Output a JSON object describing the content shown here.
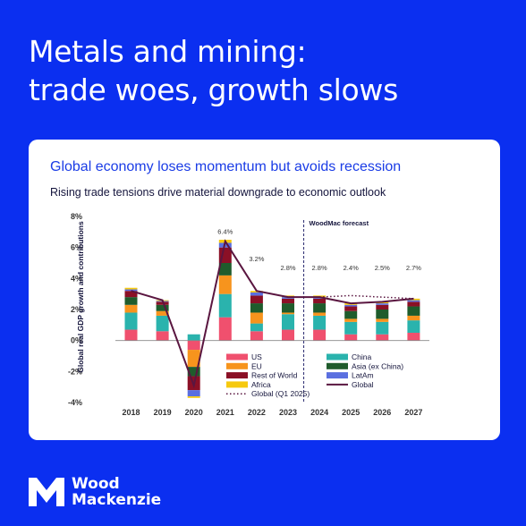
{
  "headline": {
    "line1": "Metals and mining:",
    "line2": "trade woes, growth slows"
  },
  "card": {
    "title": "Global economy loses momentum but avoids recession",
    "subtitle": "Rising trade tensions drive material downgrade to economic outlook"
  },
  "brand": {
    "line1": "Wood",
    "line2": "Mackenzie"
  },
  "colors": {
    "background": "#0b2ff0",
    "title": "#1a3ce6",
    "US": "#f0506e",
    "China": "#2ab3ad",
    "EU": "#f7941d",
    "Asia (ex China)": "#1f5c2c",
    "Rest of World": "#8b1026",
    "LatAm": "#5a6fe0",
    "Africa": "#f6c90e",
    "Global": "#5a1640"
  },
  "chart_data": {
    "type": "bar",
    "stacked": true,
    "ylabel": "Global real GDP growth and contributions",
    "ylim": [
      -4,
      8
    ],
    "yticks": [
      "8%",
      "6%",
      "4%",
      "2%",
      "0%",
      "-2%",
      "-4%"
    ],
    "ytick_values": [
      8,
      6,
      4,
      2,
      0,
      -2,
      -4
    ],
    "categories": [
      "2018",
      "2019",
      "2020",
      "2021",
      "2022",
      "2023",
      "2024",
      "2025",
      "2026",
      "2027"
    ],
    "series": [
      {
        "name": "US",
        "values": [
          0.7,
          0.6,
          -0.6,
          1.5,
          0.6,
          0.7,
          0.7,
          0.4,
          0.4,
          0.5
        ]
      },
      {
        "name": "China",
        "values": [
          1.1,
          1.0,
          0.4,
          1.5,
          0.5,
          1.0,
          0.9,
          0.8,
          0.8,
          0.8
        ]
      },
      {
        "name": "EU",
        "values": [
          0.5,
          0.3,
          -1.1,
          1.2,
          0.7,
          0.1,
          0.2,
          0.2,
          0.2,
          0.3
        ]
      },
      {
        "name": "Asia (ex China)",
        "values": [
          0.5,
          0.4,
          -0.6,
          0.8,
          0.6,
          0.6,
          0.6,
          0.5,
          0.6,
          0.6
        ]
      },
      {
        "name": "Rest of World",
        "values": [
          0.4,
          0.2,
          -0.9,
          1.0,
          0.5,
          0.3,
          0.3,
          0.3,
          0.3,
          0.3
        ]
      },
      {
        "name": "LatAm",
        "values": [
          0.1,
          0.05,
          -0.4,
          0.3,
          0.2,
          0.1,
          0.1,
          0.1,
          0.1,
          0.1
        ]
      },
      {
        "name": "Africa",
        "values": [
          0.1,
          0.05,
          -0.1,
          0.2,
          0.1,
          0.1,
          0.1,
          0.1,
          0.1,
          0.1
        ]
      }
    ],
    "line_series": [
      {
        "name": "Global",
        "values": [
          3.2,
          2.6,
          -2.9,
          6.4,
          3.2,
          2.8,
          2.8,
          2.4,
          2.5,
          2.7
        ]
      },
      {
        "name": "Global (Q1 2025)",
        "style": "dotted",
        "x": [
          "2024",
          "2025",
          "2026",
          "2027"
        ],
        "values": [
          2.8,
          2.9,
          2.8,
          2.7
        ]
      }
    ],
    "data_labels": [
      {
        "x": "2021",
        "text": "6.4%"
      },
      {
        "x": "2022",
        "text": "3.2%"
      },
      {
        "x": "2023",
        "text": "2.8%"
      },
      {
        "x": "2024",
        "text": "2.8%"
      },
      {
        "x": "2025",
        "text": "2.4%"
      },
      {
        "x": "2026",
        "text": "2.5%"
      },
      {
        "x": "2027",
        "text": "2.7%"
      }
    ],
    "annotation": {
      "text": "WoodMac forecast",
      "x_between": [
        "2023",
        "2024"
      ]
    },
    "legend": {
      "placement": "bottom-center",
      "items": [
        "US",
        "China",
        "EU",
        "Asia (ex China)",
        "Rest of World",
        "LatAm",
        "Africa",
        "Global",
        "Global (Q1 2025)"
      ]
    },
    "grid": false
  }
}
